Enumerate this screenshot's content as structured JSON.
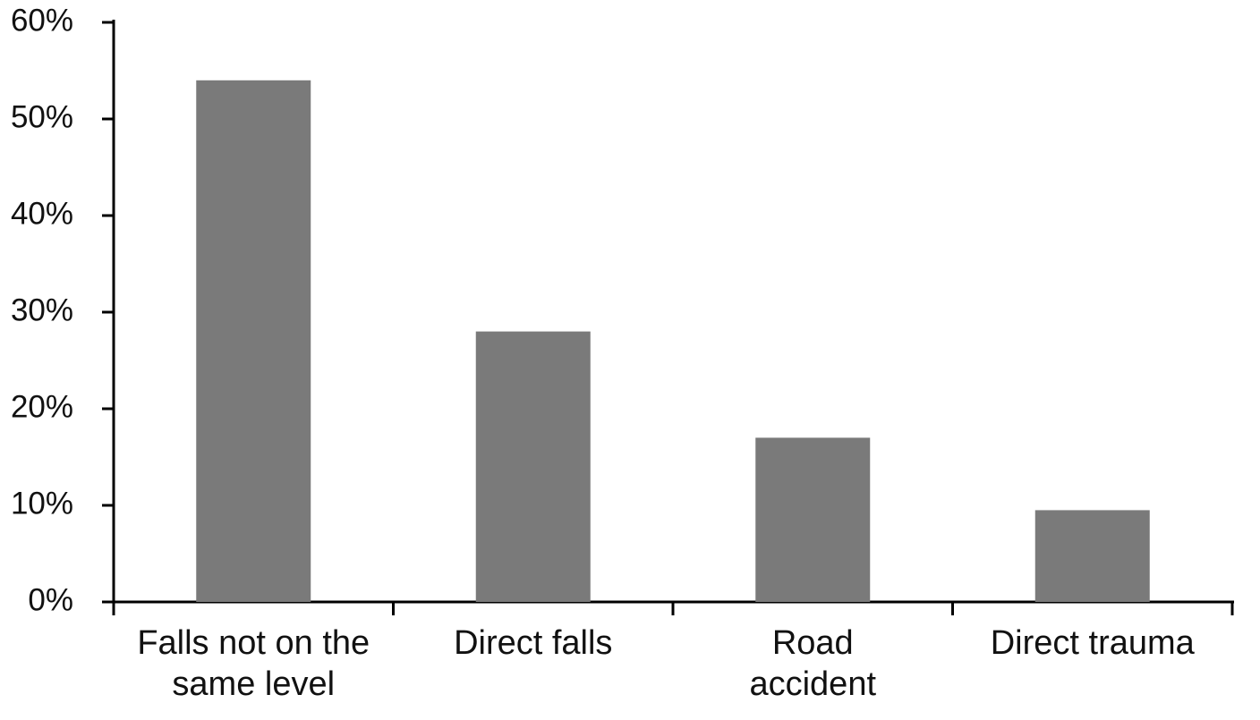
{
  "chart_data": {
    "type": "bar",
    "categories": [
      "Falls not on the\nsame level",
      "Direct falls",
      "Road\naccident",
      "Direct trauma"
    ],
    "values": [
      54,
      28,
      17,
      9.5
    ],
    "color": "#7a7a7a",
    "ylim": [
      0,
      60
    ],
    "yticks": [
      {
        "value": 0,
        "label": "0%"
      },
      {
        "value": 10,
        "label": "10%"
      },
      {
        "value": 20,
        "label": "20%"
      },
      {
        "value": 30,
        "label": "30%"
      },
      {
        "value": 40,
        "label": "40%"
      },
      {
        "value": 50,
        "label": "50%"
      },
      {
        "value": 60,
        "label": "60%"
      }
    ],
    "grid": false
  }
}
